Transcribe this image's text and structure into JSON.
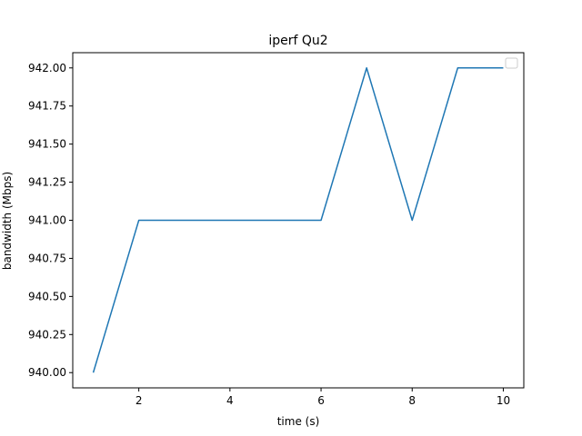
{
  "chart_data": {
    "type": "line",
    "title": "iperf Qu2",
    "xlabel": "time (s)",
    "ylabel": "bandwidth (Mbps)",
    "xlim": [
      0.55,
      10.45
    ],
    "ylim": [
      939.9,
      942.1
    ],
    "xticks": [
      2,
      4,
      6,
      8,
      10
    ],
    "yticks": [
      940.0,
      940.25,
      940.5,
      940.75,
      941.0,
      941.25,
      941.5,
      941.75,
      942.0
    ],
    "ytick_labels": [
      "940.00",
      "940.25",
      "940.50",
      "940.75",
      "941.00",
      "941.25",
      "941.50",
      "941.75",
      "942.00"
    ],
    "grid": false,
    "legend": "top-right",
    "series_color": "#1f77b4",
    "series": [
      {
        "x": [
          1,
          2,
          3,
          4,
          5,
          6,
          7,
          8,
          9,
          10
        ],
        "values": [
          940,
          941,
          941,
          941,
          941,
          941,
          942,
          941,
          942,
          942
        ]
      }
    ]
  }
}
